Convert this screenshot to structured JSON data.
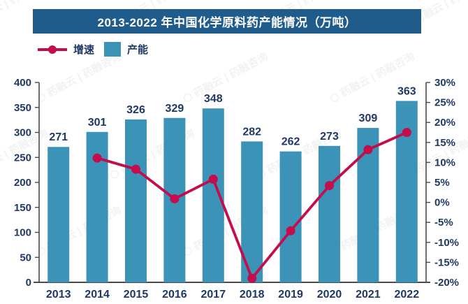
{
  "title": "2013-2022 年中国化学原料药产能情况（万吨）",
  "legend": [
    {
      "label": "增速",
      "type": "line",
      "color": "#C30D4D"
    },
    {
      "label": "产能",
      "type": "bar",
      "color": "#3B93B8"
    }
  ],
  "watermark": "⬡ 药融云 | 药融咨询",
  "colors": {
    "title_bg": "#1F5C8C",
    "title_text": "#FFFFFF",
    "bar": "#3B93B8",
    "line": "#C30D4D",
    "label_text": "#1F3864",
    "axis_line": "#4A4A4A"
  },
  "chart_data": {
    "type": "bar",
    "categories": [
      "2013",
      "2014",
      "2015",
      "2016",
      "2017",
      "2018",
      "2019",
      "2020",
      "2021",
      "2022"
    ],
    "series": [
      {
        "name": "产能",
        "type": "bar",
        "axis": "left",
        "color": "#3B93B8",
        "values": [
          271,
          301,
          326,
          329,
          348,
          282,
          262,
          273,
          309,
          363
        ],
        "data_labels": [
          "271",
          "301",
          "326",
          "329",
          "348",
          "282",
          "262",
          "273",
          "309",
          "363"
        ]
      },
      {
        "name": "增速",
        "type": "line",
        "axis": "right",
        "color": "#C30D4D",
        "values": [
          null,
          11.1,
          8.3,
          0.9,
          5.8,
          -19.0,
          -7.1,
          4.2,
          13.2,
          17.5
        ]
      }
    ],
    "title": "2013-2022 年中国化学原料药产能情况（万吨）",
    "xlabel": "",
    "ylabel": "",
    "left_axis": {
      "min": 0,
      "max": 400,
      "step": 50,
      "ticks": [
        "0",
        "50",
        "100",
        "150",
        "200",
        "250",
        "300",
        "350",
        "400"
      ]
    },
    "right_axis": {
      "min": -20,
      "max": 30,
      "step": 5,
      "ticks": [
        "-20%",
        "-15%",
        "-10%",
        "-5%",
        "0%",
        "5%",
        "10%",
        "15%",
        "20%",
        "25%",
        "30%"
      ]
    },
    "grid": false,
    "legend_position": "top-left"
  }
}
